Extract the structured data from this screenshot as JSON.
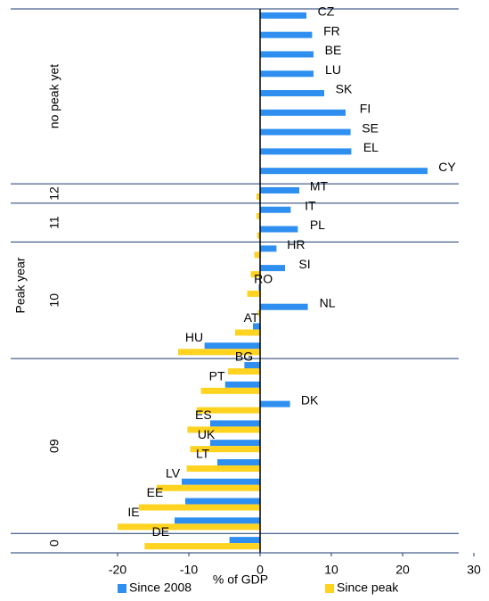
{
  "chart_data": {
    "type": "bar",
    "orientation": "horizontal",
    "x_label": "% of GDP",
    "group_axis_label": "Peak year",
    "categories": [
      "CZ",
      "FR",
      "BE",
      "LU",
      "SK",
      "FI",
      "SE",
      "EL",
      "CY",
      "MT",
      "IT",
      "PL",
      "HR",
      "SI",
      "RO",
      "NL",
      "AT",
      "HU",
      "BG",
      "PT",
      "DK",
      "ES",
      "UK",
      "LT",
      "LV",
      "EE",
      "IE",
      "DE"
    ],
    "groups": [
      {
        "label": "no peak yet",
        "count": 9
      },
      {
        "label": "12",
        "count": 1
      },
      {
        "label": "11",
        "count": 2
      },
      {
        "label": "10",
        "count": 6
      },
      {
        "label": "09",
        "count": 9
      },
      {
        "label": "0",
        "count": 1
      }
    ],
    "series": [
      {
        "name": "Since 2008",
        "color": "#2e8ff0",
        "values": [
          6.5,
          7.3,
          7.5,
          7.5,
          9,
          12,
          12.7,
          12.8,
          23.5,
          5.5,
          4.3,
          5.3,
          2.3,
          3.5,
          -0.2,
          6.7,
          -1,
          -7.8,
          -2.2,
          -4.9,
          4.2,
          -7,
          -7,
          -6,
          -11,
          -10.5,
          -12,
          -4.3
        ]
      },
      {
        "name": "Since peak",
        "color": "#ffd320",
        "values": [
          null,
          null,
          null,
          null,
          null,
          null,
          null,
          null,
          null,
          -0.5,
          -0.5,
          -0.4,
          -0.8,
          -1.3,
          -1.8,
          -0.3,
          -3.5,
          -11.5,
          -4.5,
          -8.3,
          -8.9,
          -10.2,
          -9.8,
          -10.3,
          -14.5,
          -17,
          -20,
          -16.2
        ]
      }
    ],
    "xlim": [
      -35,
      30
    ],
    "xticks": [
      -20,
      -10,
      0,
      10,
      20,
      30
    ]
  }
}
